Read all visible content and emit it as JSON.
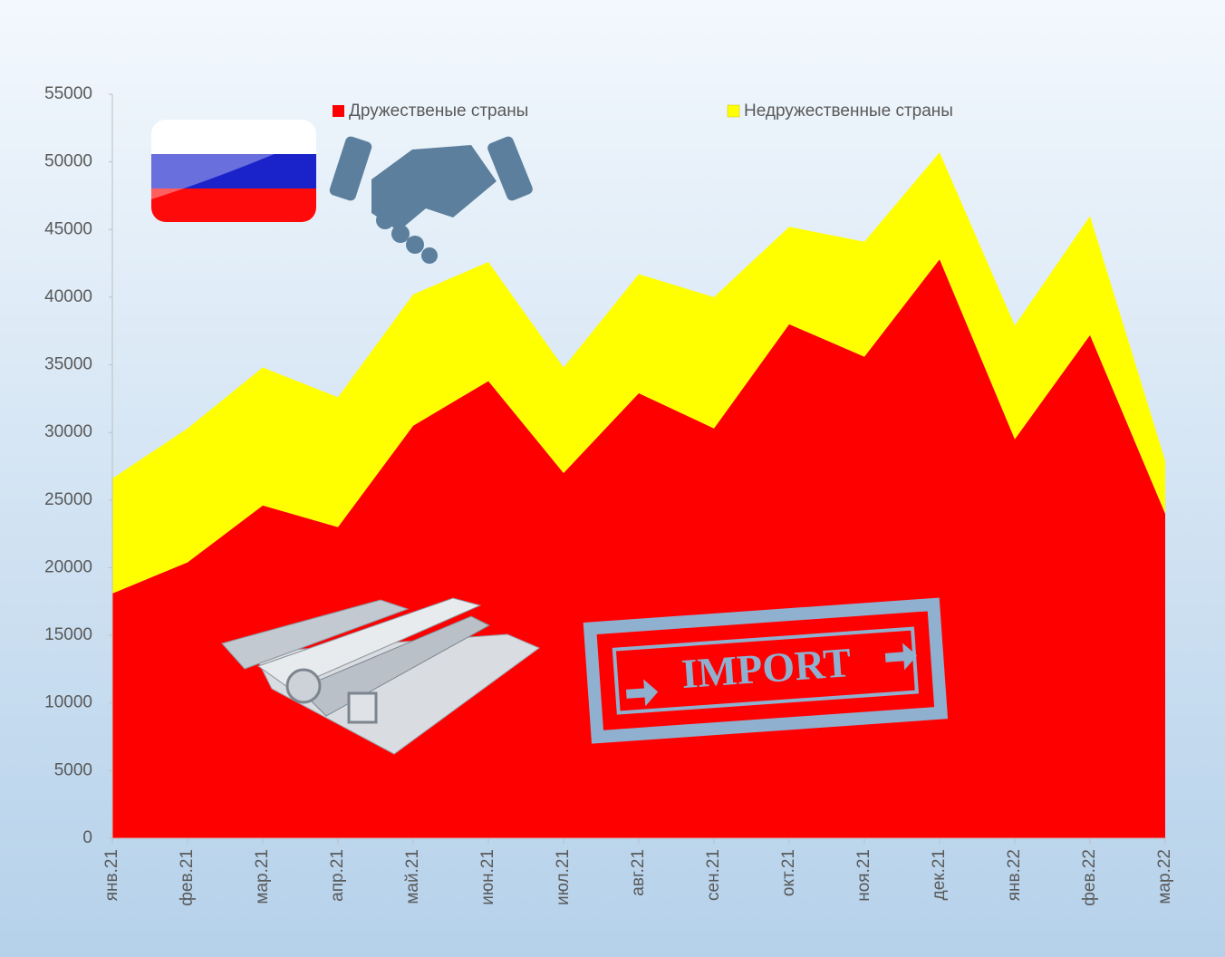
{
  "chart_data": {
    "type": "stacked_area",
    "categories": [
      "янв.21",
      "фев.21",
      "мар.21",
      "апр.21",
      "май.21",
      "июн.21",
      "июл.21",
      "авг.21",
      "сен.21",
      "окт.21",
      "ноя.21",
      "дек.21",
      "янв.22",
      "фев.22",
      "мар.22"
    ],
    "series": [
      {
        "name": "Дружественые страны",
        "color": "#ff0000",
        "values": [
          18100,
          20400,
          24600,
          23000,
          30500,
          33800,
          27000,
          32900,
          30300,
          38000,
          35600,
          42800,
          29500,
          37200,
          24000
        ]
      },
      {
        "name": "Недружественные страны",
        "color": "#ffff00",
        "values": [
          8500,
          9900,
          10200,
          9600,
          9700,
          8800,
          7800,
          8800,
          9700,
          7200,
          8500,
          7900,
          8400,
          8800,
          3900
        ]
      }
    ],
    "ylim": [
      0,
      55000
    ],
    "yticks": [
      0,
      5000,
      10000,
      15000,
      20000,
      25000,
      30000,
      35000,
      40000,
      45000,
      50000,
      55000
    ],
    "legend": "top",
    "annotations": [
      "IMPORT"
    ]
  }
}
